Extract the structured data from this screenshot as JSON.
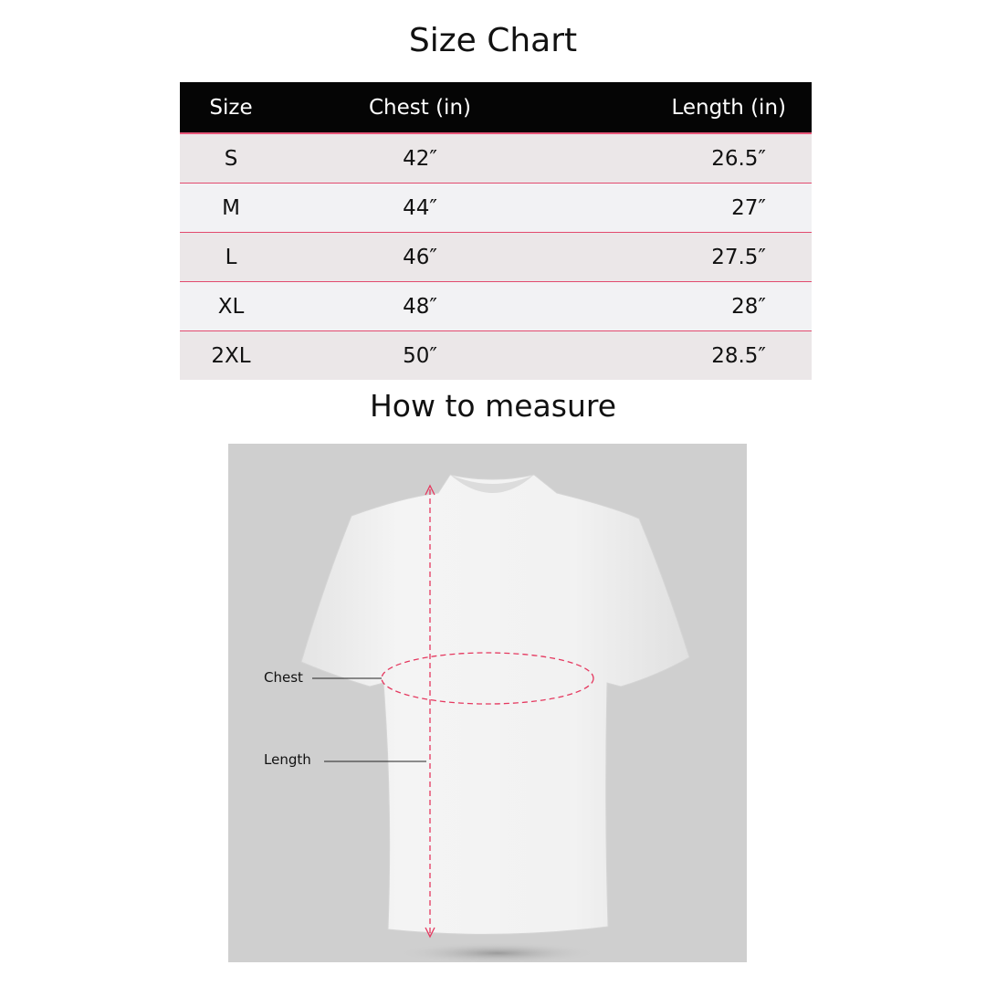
{
  "title": "Size Chart",
  "table": {
    "headers": [
      "Size",
      "Chest (in)",
      "Length (in)"
    ],
    "rows": [
      [
        "S",
        "42″",
        "26.5″"
      ],
      [
        "M",
        "44″",
        "27″"
      ],
      [
        "L",
        "46″",
        "27.5″"
      ],
      [
        "XL",
        "48″",
        "28″"
      ],
      [
        "2XL",
        "50″",
        "28.5″"
      ]
    ]
  },
  "measure": {
    "title": "How to measure",
    "chest_label": "Chest",
    "length_label": "Length"
  },
  "colors": {
    "header_bg": "#050505",
    "accent": "#e5385f",
    "row_odd": "#ebe7e8",
    "row_even": "#f2f2f4"
  }
}
